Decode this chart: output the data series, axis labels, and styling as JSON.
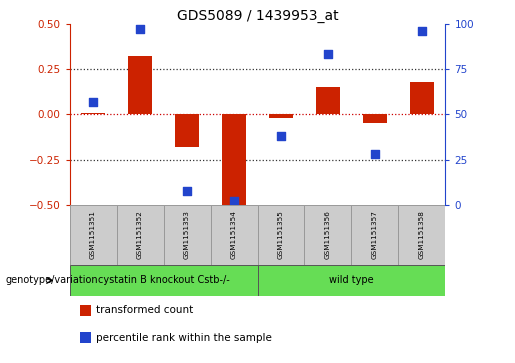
{
  "title": "GDS5089 / 1439953_at",
  "samples": [
    "GSM1151351",
    "GSM1151352",
    "GSM1151353",
    "GSM1151354",
    "GSM1151355",
    "GSM1151356",
    "GSM1151357",
    "GSM1151358"
  ],
  "red_bars": [
    0.01,
    0.32,
    -0.18,
    -0.5,
    -0.02,
    0.15,
    -0.05,
    0.18
  ],
  "blue_dots": [
    57,
    97,
    8,
    2,
    38,
    83,
    28,
    96
  ],
  "groups": [
    {
      "label": "cystatin B knockout Cstb-/-",
      "start": 0,
      "end": 3,
      "color": "#66dd55"
    },
    {
      "label": "wild type",
      "start": 4,
      "end": 7,
      "color": "#66dd55"
    }
  ],
  "group_label": "genotype/variation",
  "ylim_left": [
    -0.5,
    0.5
  ],
  "ylim_right": [
    0,
    100
  ],
  "yticks_left": [
    -0.5,
    -0.25,
    0.0,
    0.25,
    0.5
  ],
  "yticks_right": [
    0,
    25,
    50,
    75,
    100
  ],
  "red_color": "#cc2200",
  "blue_color": "#2244cc",
  "bar_width": 0.5,
  "dot_size": 28,
  "legend_items": [
    {
      "color": "#cc2200",
      "label": "transformed count"
    },
    {
      "color": "#2244cc",
      "label": "percentile rank within the sample"
    }
  ],
  "hlines": [
    -0.25,
    0.0,
    0.25
  ],
  "zero_line_color": "#cc0000",
  "nonzero_line_color": "#333333",
  "sample_box_color": "#cccccc",
  "sample_box_edge": "#999999"
}
